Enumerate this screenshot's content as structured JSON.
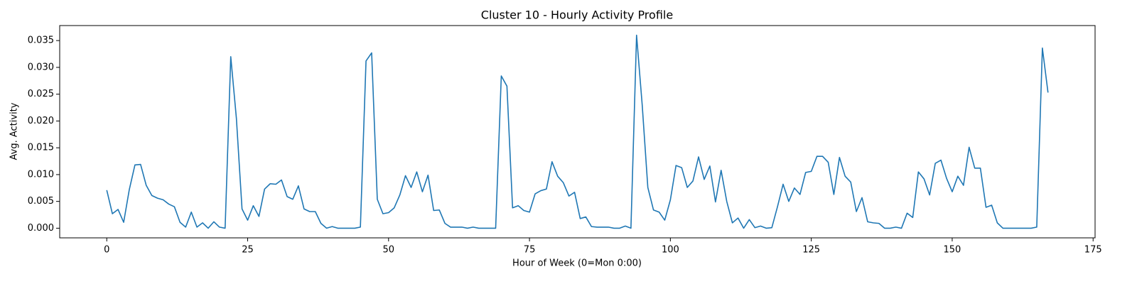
{
  "chart_data": {
    "type": "line",
    "title": "Cluster 10 - Hourly Activity Profile",
    "x_label": "Hour of Week (0=Mon 0:00)",
    "y_label": "Avg. Activity",
    "color": "#1f77b4",
    "x": [
      0,
      1,
      2,
      3,
      4,
      5,
      6,
      7,
      8,
      9,
      10,
      11,
      12,
      13,
      14,
      15,
      16,
      17,
      18,
      19,
      20,
      21,
      22,
      23,
      24,
      25,
      26,
      27,
      28,
      29,
      30,
      31,
      32,
      33,
      34,
      35,
      36,
      37,
      38,
      39,
      40,
      41,
      42,
      43,
      44,
      45,
      46,
      47,
      48,
      49,
      50,
      51,
      52,
      53,
      54,
      55,
      56,
      57,
      58,
      59,
      60,
      61,
      62,
      63,
      64,
      65,
      66,
      67,
      68,
      69,
      70,
      71,
      72,
      73,
      74,
      75,
      76,
      77,
      78,
      79,
      80,
      81,
      82,
      83,
      84,
      85,
      86,
      87,
      88,
      89,
      90,
      91,
      92,
      93,
      94,
      95,
      96,
      97,
      98,
      99,
      100,
      101,
      102,
      103,
      104,
      105,
      106,
      107,
      108,
      109,
      110,
      111,
      112,
      113,
      114,
      115,
      116,
      117,
      118,
      119,
      120,
      121,
      122,
      123,
      124,
      125,
      126,
      127,
      128,
      129,
      130,
      131,
      132,
      133,
      134,
      135,
      136,
      137,
      138,
      139,
      140,
      141,
      142,
      143,
      144,
      145,
      146,
      147,
      148,
      149,
      150,
      151,
      152,
      153,
      154,
      155,
      156,
      157,
      158,
      159,
      160,
      161,
      162,
      163,
      164,
      165,
      166,
      167
    ],
    "values": [
      0.0071,
      0.0027,
      0.0035,
      0.0011,
      0.0072,
      0.0118,
      0.0119,
      0.008,
      0.0061,
      0.0056,
      0.0053,
      0.0045,
      0.004,
      0.0011,
      0.0002,
      0.003,
      0.0002,
      0.001,
      0.0,
      0.0012,
      0.0002,
      0.0,
      0.032,
      0.0205,
      0.0036,
      0.0015,
      0.0042,
      0.0022,
      0.0073,
      0.0083,
      0.0082,
      0.009,
      0.0059,
      0.0054,
      0.0079,
      0.0036,
      0.0031,
      0.0031,
      0.0009,
      0.0,
      0.0003,
      0.0,
      0.0,
      0.0,
      0.0,
      0.0002,
      0.0312,
      0.0327,
      0.0054,
      0.0027,
      0.0029,
      0.0038,
      0.0062,
      0.0098,
      0.0076,
      0.0105,
      0.0068,
      0.0099,
      0.0033,
      0.0034,
      0.0009,
      0.0002,
      0.0002,
      0.0002,
      0.0,
      0.0002,
      0.0,
      0.0,
      0.0,
      0.0,
      0.0284,
      0.0265,
      0.0038,
      0.0042,
      0.0033,
      0.003,
      0.0064,
      0.007,
      0.0073,
      0.0124,
      0.0097,
      0.0085,
      0.006,
      0.0067,
      0.0018,
      0.0021,
      0.0003,
      0.0002,
      0.0002,
      0.0002,
      0.0,
      0.0,
      0.0004,
      0.0,
      0.036,
      0.023,
      0.0076,
      0.0034,
      0.003,
      0.0015,
      0.0053,
      0.0117,
      0.0113,
      0.0076,
      0.0088,
      0.0133,
      0.0091,
      0.0116,
      0.0049,
      0.0108,
      0.005,
      0.001,
      0.0019,
      0.0,
      0.0016,
      0.0001,
      0.0004,
      0.0,
      0.0001,
      0.004,
      0.0082,
      0.005,
      0.0075,
      0.0063,
      0.0104,
      0.0106,
      0.0134,
      0.0134,
      0.0123,
      0.0063,
      0.0132,
      0.0097,
      0.0086,
      0.0031,
      0.0057,
      0.0012,
      0.001,
      0.0009,
      0.0,
      0.0,
      0.0002,
      0.0,
      0.0028,
      0.002,
      0.0105,
      0.0092,
      0.0062,
      0.0121,
      0.0127,
      0.0093,
      0.0068,
      0.0097,
      0.008,
      0.0151,
      0.0112,
      0.0112,
      0.0039,
      0.0043,
      0.001,
      0.0,
      0.0,
      0.0,
      0.0,
      0.0,
      0.0,
      0.0002,
      0.0336,
      0.0253
    ],
    "xlim": [
      -8.35,
      175.35
    ],
    "xticks": [
      0,
      25,
      50,
      75,
      100,
      125,
      150,
      175
    ],
    "ylim": [
      -0.0018,
      0.0378
    ],
    "yticks": [
      {
        "value": 0,
        "label": "0.000"
      },
      {
        "value": 0.005,
        "label": "0.005"
      },
      {
        "value": 0.01,
        "label": "0.010"
      },
      {
        "value": 0.015,
        "label": "0.015"
      },
      {
        "value": 0.02,
        "label": "0.020"
      },
      {
        "value": 0.025,
        "label": "0.025"
      },
      {
        "value": 0.03,
        "label": "0.030"
      },
      {
        "value": 0.035,
        "label": "0.035"
      }
    ]
  }
}
